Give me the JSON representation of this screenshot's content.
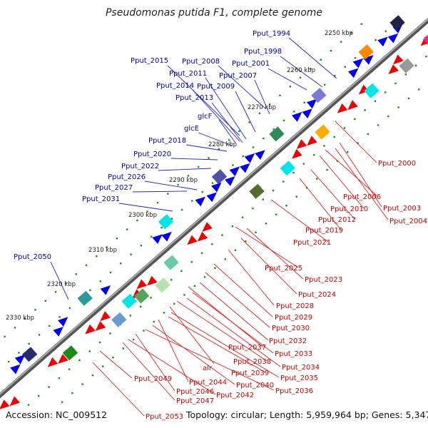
{
  "title": "Pseudomonas putida F1, complete genome",
  "footer": {
    "accession": "Accession: NC_009512",
    "summary": "Topology: circular; Length: 5,959,964 bp; Genes: 5,347"
  },
  "colors": {
    "backbone": "#777777",
    "forward_gene": "#0000ee",
    "reverse_gene": "#ee0000",
    "forward_label": "#0000aa",
    "reverse_label": "#cc0000",
    "tick_dot": "#1a8c1a"
  },
  "kbp_ticks": [
    "2250 kbp",
    "2260 kbp",
    "2270 kbp",
    "2280 kbp",
    "2290 kbp",
    "2300 kbp",
    "2310 kbp",
    "2320 kbp",
    "2330 kbp"
  ],
  "forward_labels": [
    "Pput_1994",
    "Pput_1998",
    "Pput_2001",
    "Pput_2008",
    "Pput_2007",
    "Pput_2015",
    "Pput_2011",
    "Pput_2014",
    "Pput_2009",
    "Pput_2013",
    "glcF",
    "glcE",
    "Pput_2018",
    "Pput_2020",
    "Pput_2022",
    "Pput_2026",
    "Pput_2027",
    "Pput_2031",
    "Pput_2050"
  ],
  "reverse_labels": [
    "Pput_2000",
    "Pput_2006",
    "Pput_2003",
    "Pput_2010",
    "Pput_2004",
    "Pput_2012",
    "Pput_2019",
    "Pput_2021",
    "Pput_2025",
    "Pput_2023",
    "Pput_2024",
    "Pput_2028",
    "Pput_2029",
    "Pput_2030",
    "Pput_2032",
    "Pput_2037",
    "Pput_2033",
    "Pput_2034",
    "Pput_2038",
    "alr",
    "Pput_2035",
    "Pput_2039",
    "Pput_2049",
    "Pput_2044",
    "Pput_2040",
    "Pput_2036",
    "Pput_2046",
    "Pput_2042",
    "Pput_2047",
    "Pput_2053"
  ]
}
